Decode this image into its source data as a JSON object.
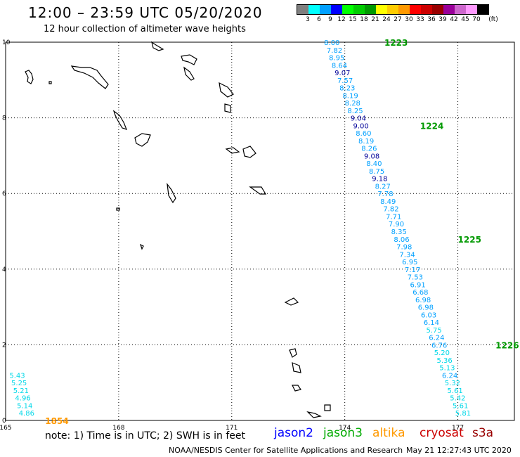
{
  "header": {
    "title": "12:00 – 23:59 UTC 05/20/2020",
    "subtitle": "12 hour collection of altimeter wave heights"
  },
  "legend": {
    "unit": "(ft)",
    "bins": [
      {
        "label": "3",
        "color": "#7f7f7f"
      },
      {
        "label": "6",
        "color": "#00ffff"
      },
      {
        "label": "9",
        "color": "#00a0ff"
      },
      {
        "label": "12",
        "color": "#0000ff"
      },
      {
        "label": "15",
        "color": "#00ff00"
      },
      {
        "label": "18",
        "color": "#00cc00"
      },
      {
        "label": "21",
        "color": "#009900"
      },
      {
        "label": "24",
        "color": "#ffff00"
      },
      {
        "label": "27",
        "color": "#ffcc00"
      },
      {
        "label": "30",
        "color": "#ff9900"
      },
      {
        "label": "33",
        "color": "#ff0000"
      },
      {
        "label": "36",
        "color": "#cc0000"
      },
      {
        "label": "39",
        "color": "#990000"
      },
      {
        "label": "42",
        "color": "#990099"
      },
      {
        "label": "45",
        "color": "#cc66cc"
      },
      {
        "label": "70",
        "color": "#ff99ff"
      },
      {
        "label": "",
        "color": "#000000"
      }
    ]
  },
  "map": {
    "lon_range": [
      165,
      178.5
    ],
    "lat_range": [
      0,
      10
    ],
    "x_ticks": [
      {
        "value": 165,
        "label": "165"
      },
      {
        "value": 168,
        "label": "168"
      },
      {
        "value": 171,
        "label": "171"
      },
      {
        "value": 174,
        "label": "174"
      },
      {
        "value": 177,
        "label": "177"
      }
    ],
    "y_ticks": [
      {
        "value": 0,
        "label": "0"
      },
      {
        "value": 2,
        "label": "2"
      },
      {
        "value": 4,
        "label": "4"
      },
      {
        "value": 6,
        "label": "6"
      },
      {
        "value": 8,
        "label": "8"
      },
      {
        "value": 10,
        "label": "10"
      }
    ],
    "text_color_by_value": [
      {
        "min": 0,
        "max": 6,
        "color": "#00d8e8"
      },
      {
        "min": 6,
        "max": 9,
        "color": "#00a0ff"
      },
      {
        "min": 9,
        "max": 12,
        "color": "#000099"
      }
    ]
  },
  "tracks": [
    {
      "satellite": "jason2",
      "time_labels": [
        {
          "text": "1223",
          "lon": 175.05,
          "lat": 10.0,
          "color": "#009900"
        },
        {
          "text": "1224",
          "lon": 176.0,
          "lat": 7.8,
          "color": "#009900"
        },
        {
          "text": "1225",
          "lon": 177.0,
          "lat": 4.8,
          "color": "#009900"
        },
        {
          "text": "1226",
          "lon": 178.0,
          "lat": 2.0,
          "color": "#009900"
        }
      ],
      "points": [
        {
          "lon": 173.45,
          "lat": 10.0,
          "value": "8.00"
        },
        {
          "lon": 173.52,
          "lat": 9.8,
          "value": "7.82"
        },
        {
          "lon": 173.58,
          "lat": 9.6,
          "value": "8.95"
        },
        {
          "lon": 173.65,
          "lat": 9.4,
          "value": "8.64"
        },
        {
          "lon": 173.73,
          "lat": 9.2,
          "value": "9.07"
        },
        {
          "lon": 173.8,
          "lat": 9.0,
          "value": "7.57"
        },
        {
          "lon": 173.86,
          "lat": 8.8,
          "value": "8.23"
        },
        {
          "lon": 173.94,
          "lat": 8.6,
          "value": "8.19"
        },
        {
          "lon": 174.0,
          "lat": 8.4,
          "value": "8.28"
        },
        {
          "lon": 174.07,
          "lat": 8.2,
          "value": "8.25"
        },
        {
          "lon": 174.15,
          "lat": 8.0,
          "value": "9.04"
        },
        {
          "lon": 174.22,
          "lat": 7.8,
          "value": "9.00"
        },
        {
          "lon": 174.29,
          "lat": 7.6,
          "value": "8.60"
        },
        {
          "lon": 174.36,
          "lat": 7.4,
          "value": "8.19"
        },
        {
          "lon": 174.44,
          "lat": 7.2,
          "value": "8.26"
        },
        {
          "lon": 174.51,
          "lat": 7.0,
          "value": "9.08"
        },
        {
          "lon": 174.57,
          "lat": 6.8,
          "value": "8.40"
        },
        {
          "lon": 174.64,
          "lat": 6.6,
          "value": "8.75"
        },
        {
          "lon": 174.72,
          "lat": 6.4,
          "value": "9.18"
        },
        {
          "lon": 174.8,
          "lat": 6.2,
          "value": "8.27"
        },
        {
          "lon": 174.87,
          "lat": 6.0,
          "value": "7.78"
        },
        {
          "lon": 174.94,
          "lat": 5.8,
          "value": "8.49"
        },
        {
          "lon": 175.02,
          "lat": 5.6,
          "value": "7.82"
        },
        {
          "lon": 175.09,
          "lat": 5.4,
          "value": "7.71"
        },
        {
          "lon": 175.16,
          "lat": 5.2,
          "value": "7.90"
        },
        {
          "lon": 175.23,
          "lat": 5.0,
          "value": "8.35"
        },
        {
          "lon": 175.3,
          "lat": 4.8,
          "value": "8.06"
        },
        {
          "lon": 175.37,
          "lat": 4.6,
          "value": "7.98"
        },
        {
          "lon": 175.45,
          "lat": 4.4,
          "value": "7.34"
        },
        {
          "lon": 175.52,
          "lat": 4.2,
          "value": "6.95"
        },
        {
          "lon": 175.59,
          "lat": 4.0,
          "value": "7.17"
        },
        {
          "lon": 175.66,
          "lat": 3.8,
          "value": "7.53"
        },
        {
          "lon": 175.73,
          "lat": 3.6,
          "value": "6.91"
        },
        {
          "lon": 175.8,
          "lat": 3.4,
          "value": "6.68"
        },
        {
          "lon": 175.87,
          "lat": 3.2,
          "value": "6.98"
        },
        {
          "lon": 175.94,
          "lat": 3.0,
          "value": "6.98"
        },
        {
          "lon": 176.02,
          "lat": 2.8,
          "value": "6.03"
        },
        {
          "lon": 176.09,
          "lat": 2.6,
          "value": "6.14"
        },
        {
          "lon": 176.16,
          "lat": 2.4,
          "value": "5.75"
        },
        {
          "lon": 176.23,
          "lat": 2.2,
          "value": "6.24"
        },
        {
          "lon": 176.3,
          "lat": 2.0,
          "value": "6.76"
        },
        {
          "lon": 176.37,
          "lat": 1.8,
          "value": "5.20"
        },
        {
          "lon": 176.44,
          "lat": 1.6,
          "value": "5.36"
        },
        {
          "lon": 176.51,
          "lat": 1.4,
          "value": "5.13"
        },
        {
          "lon": 176.58,
          "lat": 1.2,
          "value": "6.24"
        },
        {
          "lon": 176.65,
          "lat": 1.0,
          "value": "5.32"
        },
        {
          "lon": 176.72,
          "lat": 0.8,
          "value": "5.61"
        },
        {
          "lon": 176.79,
          "lat": 0.6,
          "value": "5.42"
        },
        {
          "lon": 176.86,
          "lat": 0.4,
          "value": "5.61"
        },
        {
          "lon": 176.93,
          "lat": 0.2,
          "value": "5.81"
        }
      ]
    },
    {
      "satellite": "altika",
      "time_labels": [
        {
          "text": "1854",
          "lon": 166.05,
          "lat": 0.0,
          "color": "#ff9900"
        }
      ],
      "points": [
        {
          "lon": 165.1,
          "lat": 1.2,
          "value": "5.43"
        },
        {
          "lon": 165.15,
          "lat": 1.0,
          "value": "5.25"
        },
        {
          "lon": 165.2,
          "lat": 0.8,
          "value": "5.21"
        },
        {
          "lon": 165.25,
          "lat": 0.6,
          "value": "4.96"
        },
        {
          "lon": 165.3,
          "lat": 0.4,
          "value": "5.14"
        },
        {
          "lon": 165.35,
          "lat": 0.2,
          "value": "4.86"
        }
      ]
    }
  ],
  "footer": {
    "note": "note:  1) Time is in UTC;  2) SWH is in feet",
    "satellites": [
      {
        "name": "jason2",
        "color": "#0000ff"
      },
      {
        "name": "jason3",
        "color": "#00aa00"
      },
      {
        "name": "altika",
        "color": "#ff9900"
      },
      {
        "name": "cryosat",
        "color": "#cc0000"
      },
      {
        "name": "s3a",
        "color": "#990000"
      }
    ],
    "credit": "NOAA/NESDIS Center for Satellite Applications and Research",
    "timestamp": "May 21 12:27:43 UTC 2020"
  }
}
